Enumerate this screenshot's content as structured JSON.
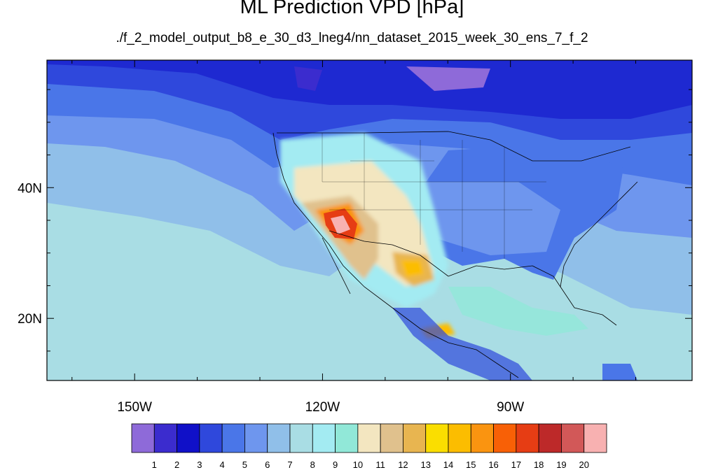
{
  "title": "ML Prediction VPD [hPa]",
  "subtitle": "./f_2_model_output_b8_e_30_d3_lneg4/nn_dataset_2015_week_30_ens_7_f_2",
  "axes": {
    "lon": {
      "min": -164,
      "max": -61,
      "ticks": [
        {
          "value": -150,
          "label": "150W"
        },
        {
          "value": -120,
          "label": "120W"
        },
        {
          "value": -90,
          "label": "90W"
        }
      ]
    },
    "lat": {
      "min": 10.5,
      "max": 59.5,
      "ticks": [
        {
          "value": 40,
          "label": "40N"
        },
        {
          "value": 20,
          "label": "20N"
        }
      ]
    }
  },
  "colorbar": {
    "colors": [
      "#8e6ad9",
      "#3b2cce",
      "#1010c8",
      "#2f48dc",
      "#4a76e8",
      "#6e96ee",
      "#90bfe9",
      "#a9dde4",
      "#a3ebf2",
      "#91e8d8",
      "#f3e6c0",
      "#e0c18d",
      "#e8b550",
      "#fade00",
      "#fcbd00",
      "#fa9410",
      "#f86006",
      "#e63d14",
      "#bd2929",
      "#d25858",
      "#f8b1b1"
    ],
    "labels": [
      "1",
      "2",
      "3",
      "4",
      "5",
      "6",
      "7",
      "8",
      "9",
      "10",
      "11",
      "12",
      "13",
      "14",
      "15",
      "16",
      "17",
      "18",
      "19",
      "20"
    ]
  }
}
